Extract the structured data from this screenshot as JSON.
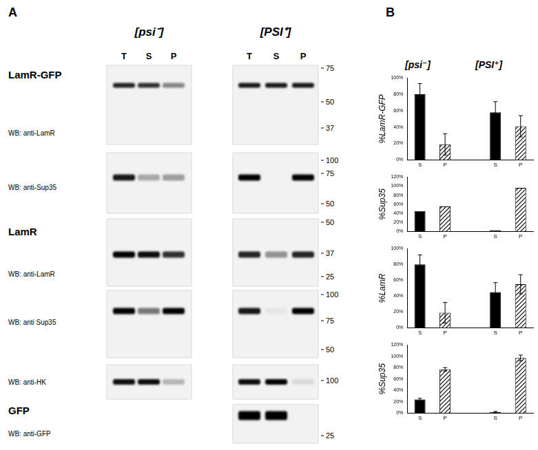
{
  "panel_a": {
    "label": "A",
    "groups": [
      "[psi⁻]",
      "[PSI⁺]"
    ],
    "lanes": [
      "T",
      "S",
      "P"
    ],
    "rows": [
      {
        "title": "LamR-GFP",
        "antibody": "WB: anti-LamR",
        "markers": [
          75,
          50,
          37
        ],
        "bands": [
          [
            0.85,
            0.8,
            0.45
          ],
          [
            0.9,
            0.9,
            0.9
          ]
        ]
      },
      {
        "antibody": "WB: anti-Sup35",
        "markers": [
          100,
          75,
          50
        ],
        "bands": [
          [
            0.9,
            0.3,
            0.35
          ],
          [
            1,
            0,
            1
          ]
        ]
      },
      {
        "title": "LamR",
        "antibody": "WB: anti-LamR",
        "markers": [
          50,
          37,
          25
        ],
        "bands": [
          [
            1,
            0.95,
            0.8
          ],
          [
            0.85,
            0.4,
            0.85
          ]
        ]
      },
      {
        "antibody": "WB: anti Sup35",
        "markers": [
          100,
          75,
          50
        ],
        "bands": [
          [
            1,
            0.5,
            1
          ],
          [
            0.9,
            0.05,
            1
          ]
        ]
      },
      {
        "antibody": "WB: anti-HK",
        "markers": [
          100
        ],
        "bands": [
          [
            0.95,
            0.95,
            0.25
          ],
          [
            0.95,
            1,
            0.1
          ]
        ]
      },
      {
        "title": "GFP",
        "antibody": "WB: anti-GFP",
        "markers": [
          25
        ],
        "bands": [
          null,
          [
            1,
            1,
            0
          ]
        ]
      }
    ]
  },
  "panel_b": {
    "label": "B",
    "groups": [
      "[psi⁻]",
      "[PSI⁺]"
    ]
  },
  "chart_data": [
    {
      "type": "bar",
      "y_label": "%LamR-GFP",
      "categories": [
        "S",
        "P",
        null,
        "S",
        "P"
      ],
      "series": [
        {
          "name": "S",
          "color": "#000000",
          "values": [
            80,
            null,
            null,
            58,
            null
          ],
          "errors": [
            13,
            null,
            null,
            13,
            null
          ]
        },
        {
          "name": "P",
          "color": "#000000",
          "line_style": "hatched",
          "values": [
            null,
            19,
            null,
            null,
            41
          ],
          "errors": [
            null,
            13,
            null,
            null,
            13
          ]
        }
      ],
      "ylim": [
        0,
        100
      ],
      "yticks": [
        {
          "value": 0,
          "label": "0%"
        },
        {
          "value": 20,
          "label": "20%"
        },
        {
          "value": 40,
          "label": "40%"
        },
        {
          "value": 60,
          "label": "60%"
        },
        {
          "value": 80,
          "label": "80%"
        },
        {
          "value": 100,
          "label": "100%"
        }
      ],
      "grid": false
    },
    {
      "type": "bar",
      "y_label": "%Sup35",
      "categories": [
        "S",
        "P",
        null,
        "S",
        "P"
      ],
      "series": [
        {
          "name": "S",
          "color": "#000000",
          "values": [
            45,
            null,
            null,
            3,
            null
          ]
        },
        {
          "name": "P",
          "color": "#000000",
          "line_style": "hatched",
          "values": [
            null,
            55,
            null,
            null,
            96
          ]
        }
      ],
      "ylim": [
        0,
        120
      ],
      "yticks": [
        {
          "value": 0,
          "label": "0%"
        },
        {
          "value": 20,
          "label": "20%"
        },
        {
          "value": 40,
          "label": "40%"
        },
        {
          "value": 60,
          "label": "60%"
        },
        {
          "value": 80,
          "label": "80%"
        },
        {
          "value": 100,
          "label": "100%"
        },
        {
          "value": 120,
          "label": "120%"
        }
      ],
      "grid": false
    },
    {
      "type": "bar",
      "y_label": "%LamR",
      "categories": [
        "S",
        "P",
        null,
        "S",
        "P"
      ],
      "series": [
        {
          "name": "S",
          "color": "#000000",
          "values": [
            80,
            null,
            null,
            45,
            null
          ],
          "errors": [
            12,
            null,
            null,
            12,
            null
          ]
        },
        {
          "name": "P",
          "color": "#000000",
          "line_style": "hatched",
          "values": [
            null,
            19,
            null,
            null,
            55
          ],
          "errors": [
            null,
            13,
            null,
            null,
            12
          ]
        }
      ],
      "ylim": [
        0,
        100
      ],
      "yticks": [
        {
          "value": 0,
          "label": "0%"
        },
        {
          "value": 20,
          "label": "20%"
        },
        {
          "value": 40,
          "label": "40%"
        },
        {
          "value": 60,
          "label": "60%"
        },
        {
          "value": 80,
          "label": "80%"
        },
        {
          "value": 100,
          "label": "100%"
        }
      ],
      "grid": false
    },
    {
      "type": "bar",
      "y_label": "%Sup35",
      "categories": [
        "S",
        "P",
        null,
        "S",
        "P"
      ],
      "series": [
        {
          "name": "S",
          "color": "#000000",
          "values": [
            24,
            null,
            null,
            2,
            null
          ],
          "errors": [
            2,
            null,
            null,
            1,
            null
          ]
        },
        {
          "name": "P",
          "color": "#000000",
          "line_style": "hatched",
          "values": [
            null,
            77,
            null,
            null,
            97
          ],
          "errors": [
            null,
            3,
            null,
            null,
            5
          ]
        }
      ],
      "ylim": [
        0,
        120
      ],
      "yticks": [
        {
          "value": 0,
          "label": "0%"
        },
        {
          "value": 20,
          "label": "20%"
        },
        {
          "value": 40,
          "label": "40%"
        },
        {
          "value": 60,
          "label": "60%"
        },
        {
          "value": 80,
          "label": "80%"
        },
        {
          "value": 100,
          "label": "100%"
        },
        {
          "value": 120,
          "label": "120%"
        }
      ],
      "grid": false
    }
  ]
}
